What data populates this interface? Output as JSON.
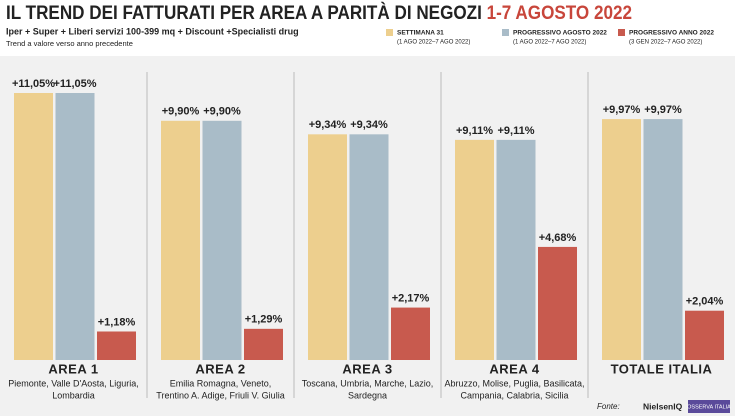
{
  "chart_data": {
    "type": "bar",
    "title": "IL TREND DEI FATTURATI PER AREA A PARITÀ DI NEGOZI",
    "title_highlight": "1-7 AGOSTO 2022",
    "subtitle": "Iper + Super + Liberi servizi 100-399 mq + Discount +Specialisti drug",
    "note": "Trend a valore verso anno precedente",
    "categories": [
      "AREA 1",
      "AREA 2",
      "AREA 3",
      "AREA 4",
      "TOTALE ITALIA"
    ],
    "category_notes": [
      [
        "Piemonte, Valle D'Aosta, Liguria,",
        "Lombardia"
      ],
      [
        "Emilia Romagna, Veneto,",
        "Trentino A. Adige, Friuli V. Giulia"
      ],
      [
        "Toscana, Umbria, Marche, Lazio,",
        "Sardegna"
      ],
      [
        "Abruzzo, Molise, Puglia, Basilicata,",
        "Campania, Calabria, Sicilia"
      ],
      []
    ],
    "series": [
      {
        "name": "SETTIMANA 31",
        "period": "(1 AGO 2022–7 AGO 2022)",
        "color": "#edcf8e",
        "values": [
          11.05,
          9.9,
          9.34,
          9.11,
          9.97
        ],
        "value_labels": [
          "+11,05%",
          "+9,90%",
          "+9,34%",
          "+9,11%",
          "+9,97%"
        ]
      },
      {
        "name": "PROGRESSIVO AGOSTO 2022",
        "period": "(1 AGO 2022–7 AGO 2022)",
        "color": "#a9bcc8",
        "values": [
          11.05,
          9.9,
          9.34,
          9.11,
          9.97
        ],
        "value_labels": [
          "+11,05%",
          "+9,90%",
          "+9,34%",
          "+9,11%",
          "+9,97%"
        ]
      },
      {
        "name": "PROGRESSIVO ANNO 2022",
        "period": "(3 GEN 2022–7 AGO 2022)",
        "color": "#c85a4e",
        "values": [
          1.18,
          1.29,
          2.17,
          4.68,
          2.04
        ],
        "value_labels": [
          "+1,18%",
          "+1,29%",
          "+2,17%",
          "+4,68%",
          "+2,04%"
        ]
      }
    ],
    "source": "Fonte:",
    "source_logos": [
      "NielsenIQ",
      "OSSERVA ITALIA"
    ]
  }
}
